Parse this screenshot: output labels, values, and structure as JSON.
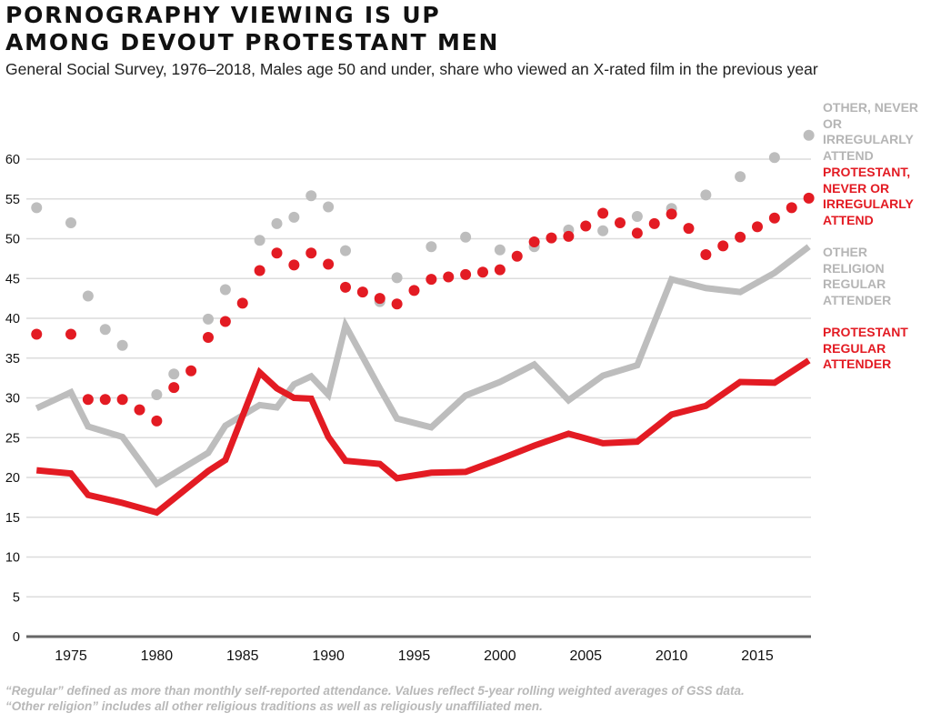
{
  "title_lines": [
    "POrnography viewing is up",
    "among devout Protestant men"
  ],
  "subtitle": "General Social Survey, 1976–2018, Males age 50 and under, share who viewed an X-rated film in the previous year",
  "footnote_lines": [
    "“Regular” defined as more than monthly self-reported attendance. Values reflect 5-year rolling weighted averages of GSS data.",
    "“Other religion” includes all other religious traditions as well as religiously unaffiliated men."
  ],
  "colors": {
    "red": "#e31b23",
    "gray": "#bdbdbd",
    "grid": "#dcdcdc",
    "axis": "#666666"
  },
  "chart_data": {
    "type": "line",
    "title": "Pornography viewing is up among devout Protestant men",
    "subtitle": "General Social Survey, 1976–2018, Males age 50 and under, share who viewed an X-rated film in the previous year",
    "xlabel": "",
    "ylabel": "",
    "xlim": [
      1972.4,
      2018
    ],
    "ylim": [
      0,
      60
    ],
    "yticks": [
      0,
      5,
      10,
      15,
      20,
      25,
      30,
      35,
      40,
      45,
      50,
      55,
      60
    ],
    "xticks": [
      1975,
      1980,
      1985,
      1990,
      1995,
      2000,
      2005,
      2010,
      2015
    ],
    "grid": true,
    "legend": "direct-labels-right",
    "series": [
      {
        "name": "Other, never or irregularly attend",
        "label_lines": [
          "OTHER, NEVER",
          "OR IRREGULARLY",
          "ATTEND"
        ],
        "color": "#bdbdbd",
        "style": "dotted",
        "x": [
          1973,
          1975,
          1976,
          1977,
          1978,
          1980,
          1981,
          1983,
          1984,
          1986,
          1987,
          1988,
          1989,
          1990,
          1991,
          1993,
          1994,
          1996,
          1998,
          2000,
          2002,
          2004,
          2006,
          2008,
          2010,
          2012,
          2014,
          2016,
          2018
        ],
        "y": [
          53.9,
          52.0,
          42.8,
          38.6,
          36.6,
          30.4,
          33.0,
          39.9,
          43.6,
          49.8,
          51.9,
          52.7,
          55.4,
          54.0,
          48.5,
          42.1,
          45.1,
          49.0,
          50.2,
          48.6,
          49.0,
          51.1,
          51.0,
          52.8,
          53.8,
          55.5,
          57.8,
          60.2,
          63.0
        ]
      },
      {
        "name": "Protestant, never or irregularly attend",
        "label_lines": [
          "PROTESTANT,",
          "NEVER OR",
          "IRREGULARLY",
          "ATTEND"
        ],
        "color": "#e31b23",
        "style": "dotted",
        "x": [
          1973,
          1975,
          1976,
          1977,
          1978,
          1979,
          1980,
          1981,
          1982,
          1983,
          1984,
          1985,
          1986,
          1987,
          1988,
          1989,
          1990,
          1991,
          1992,
          1993,
          1994,
          1995,
          1996,
          1997,
          1998,
          1999,
          2000,
          2001,
          2002,
          2003,
          2004,
          2005,
          2006,
          2007,
          2008,
          2009,
          2010,
          2011,
          2012,
          2013,
          2014,
          2015,
          2016,
          2017,
          2018
        ],
        "y": [
          38.0,
          38.0,
          29.8,
          29.8,
          29.8,
          28.5,
          27.1,
          31.3,
          33.4,
          37.6,
          39.6,
          41.9,
          46.0,
          48.2,
          46.7,
          48.2,
          46.8,
          43.9,
          43.3,
          42.5,
          41.8,
          43.5,
          44.9,
          45.2,
          45.5,
          45.8,
          46.1,
          47.8,
          49.6,
          50.1,
          50.3,
          51.6,
          53.2,
          52.0,
          50.7,
          51.9,
          53.1,
          51.3,
          48.0,
          49.1,
          50.2,
          51.5,
          52.6,
          53.9,
          55.1
        ]
      },
      {
        "name": "Other religion regular attender",
        "label_lines": [
          "OTHER",
          "RELIGION",
          "REGULAR",
          "ATTENDER"
        ],
        "color": "#bdbdbd",
        "style": "solid",
        "x": [
          1973,
          1975,
          1976,
          1978,
          1980,
          1983,
          1984,
          1986,
          1987,
          1988,
          1989,
          1990,
          1991,
          1993,
          1994,
          1996,
          1998,
          2000,
          2002,
          2004,
          2006,
          2008,
          2010,
          2012,
          2014,
          2016,
          2018
        ],
        "y": [
          28.7,
          30.7,
          26.4,
          25.1,
          19.2,
          23.1,
          26.5,
          29.1,
          28.8,
          31.7,
          32.7,
          30.4,
          39.1,
          31.2,
          27.4,
          26.3,
          30.3,
          32.0,
          34.2,
          29.7,
          32.8,
          34.1,
          44.9,
          43.8,
          43.3,
          45.7,
          49.0
        ]
      },
      {
        "name": "Protestant regular attender",
        "label_lines": [
          "PROTESTANT",
          "REGULAR",
          "ATTENDER"
        ],
        "color": "#e31b23",
        "style": "solid",
        "x": [
          1973,
          1975,
          1976,
          1978,
          1980,
          1983,
          1984,
          1986,
          1987,
          1988,
          1989,
          1990,
          1991,
          1993,
          1994,
          1996,
          1998,
          2000,
          2002,
          2004,
          2006,
          2008,
          2010,
          2012,
          2014,
          2016,
          2018
        ],
        "y": [
          20.9,
          20.5,
          17.8,
          16.8,
          15.6,
          20.8,
          22.2,
          33.2,
          31.2,
          30.0,
          29.9,
          25.1,
          22.1,
          21.7,
          19.9,
          20.6,
          20.7,
          22.3,
          24.0,
          25.5,
          24.3,
          24.5,
          27.9,
          29.0,
          32.0,
          31.9,
          34.7
        ]
      }
    ]
  }
}
